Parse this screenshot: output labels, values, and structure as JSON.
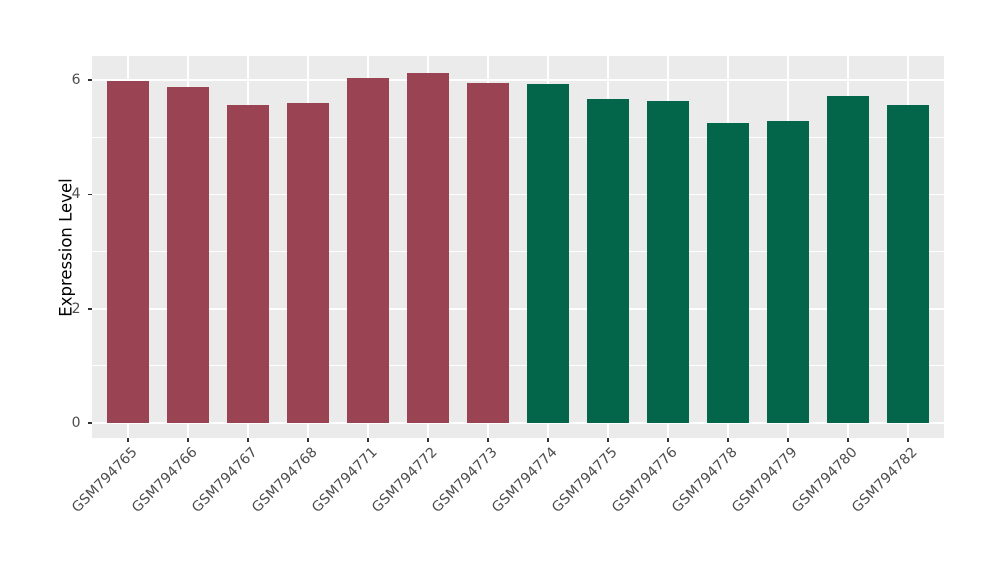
{
  "figure": {
    "background": "#ffffff",
    "panel_background": "#ebebeb",
    "grid_color": "#ffffff",
    "tick_color": "#333333",
    "tick_label_color": "#4d4d4d",
    "axis_title_color": "#000000"
  },
  "chart_data": {
    "type": "bar",
    "title": "",
    "xlabel": "",
    "ylabel": "Expression Level",
    "categories": [
      "GSM794765",
      "GSM794766",
      "GSM794767",
      "GSM794768",
      "GSM794771",
      "GSM794772",
      "GSM794773",
      "GSM794774",
      "GSM794775",
      "GSM794776",
      "GSM794778",
      "GSM794779",
      "GSM794780",
      "GSM794782"
    ],
    "values": [
      5.99,
      5.88,
      5.56,
      5.6,
      6.03,
      6.12,
      5.95,
      5.93,
      5.67,
      5.63,
      5.24,
      5.29,
      5.72,
      5.57
    ],
    "bar_colors": [
      "#9a4453",
      "#9a4453",
      "#9a4453",
      "#9a4453",
      "#9a4453",
      "#9a4453",
      "#9a4453",
      "#03664a",
      "#03664a",
      "#03664a",
      "#03664a",
      "#03664a",
      "#03664a",
      "#03664a"
    ],
    "groups": [
      {
        "name": "group-1",
        "color": "#9a4453",
        "categories": [
          "GSM794765",
          "GSM794766",
          "GSM794767",
          "GSM794768",
          "GSM794771",
          "GSM794772",
          "GSM794773"
        ]
      },
      {
        "name": "group-2",
        "color": "#03664a",
        "categories": [
          "GSM794774",
          "GSM794775",
          "GSM794776",
          "GSM794778",
          "GSM794779",
          "GSM794780",
          "GSM794782"
        ]
      }
    ],
    "yticks": [
      0,
      2,
      4,
      6
    ],
    "yticks_minor": [
      1,
      3,
      5
    ],
    "ylim": [
      -0.26,
      6.42
    ],
    "bar_width_fraction": 0.7,
    "x_label_rotation_deg": 45,
    "legend": "none",
    "grid": "on"
  }
}
